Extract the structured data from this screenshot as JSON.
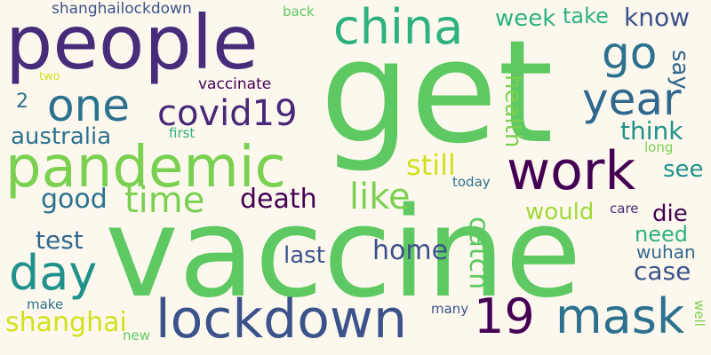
{
  "colors": {
    "background": "#fdf8ee"
  },
  "words": [
    {
      "text": "get",
      "color": "#5ec962",
      "vertical": false
    },
    {
      "text": "vaccine",
      "color": "#5ec962",
      "vertical": false
    },
    {
      "text": "people",
      "color": "#472c7a",
      "vertical": false
    },
    {
      "text": "pandemic",
      "color": "#7ad151",
      "vertical": false
    },
    {
      "text": "lockdown",
      "color": "#3b528b",
      "vertical": false
    },
    {
      "text": "work",
      "color": "#440154",
      "vertical": false
    },
    {
      "text": "china",
      "color": "#2db27d",
      "vertical": false
    },
    {
      "text": "mask",
      "color": "#2c728e",
      "vertical": false
    },
    {
      "text": "one",
      "color": "#2c728e",
      "vertical": false
    },
    {
      "text": "year",
      "color": "#31688e",
      "vertical": false
    },
    {
      "text": "day",
      "color": "#21918c",
      "vertical": false
    },
    {
      "text": "go",
      "color": "#2c728e",
      "vertical": false
    },
    {
      "text": "19",
      "color": "#440154",
      "vertical": false
    },
    {
      "text": "covid19",
      "color": "#482878",
      "vertical": false
    },
    {
      "text": "time",
      "color": "#7ad151",
      "vertical": false
    },
    {
      "text": "like",
      "color": "#7ad151",
      "vertical": false
    },
    {
      "text": "still",
      "color": "#d0e11c",
      "vertical": false
    },
    {
      "text": "death",
      "color": "#440154",
      "vertical": false
    },
    {
      "text": "good",
      "color": "#2c728e",
      "vertical": false
    },
    {
      "text": "catch",
      "color": "#5ec962",
      "vertical": true
    },
    {
      "text": "home",
      "color": "#3b528b",
      "vertical": false
    },
    {
      "text": "shanghai",
      "color": "#d0e11c",
      "vertical": false
    },
    {
      "text": "test",
      "color": "#31688e",
      "vertical": false
    },
    {
      "text": "australia",
      "color": "#2c728e",
      "vertical": false
    },
    {
      "text": "know",
      "color": "#3b528b",
      "vertical": false
    },
    {
      "text": "week",
      "color": "#2db27d",
      "vertical": false
    },
    {
      "text": "take",
      "color": "#2db27d",
      "vertical": false
    },
    {
      "text": "say",
      "color": "#31688e",
      "vertical": true
    },
    {
      "text": "health",
      "color": "#7ad151",
      "vertical": true
    },
    {
      "text": "think",
      "color": "#21918c",
      "vertical": false
    },
    {
      "text": "would",
      "color": "#a0da39",
      "vertical": false
    },
    {
      "text": "die",
      "color": "#440154",
      "vertical": false
    },
    {
      "text": "see",
      "color": "#21918c",
      "vertical": false
    },
    {
      "text": "need",
      "color": "#2db27d",
      "vertical": false
    },
    {
      "text": "case",
      "color": "#3b528b",
      "vertical": false
    },
    {
      "text": "last",
      "color": "#3b528b",
      "vertical": false
    },
    {
      "text": "wuhan",
      "color": "#31688e",
      "vertical": false
    },
    {
      "text": "shanghailockdown",
      "color": "#3b528b",
      "vertical": false
    },
    {
      "text": "vaccinate",
      "color": "#440154",
      "vertical": false
    },
    {
      "text": "back",
      "color": "#5ec962",
      "vertical": false
    },
    {
      "text": "2",
      "color": "#2c728e",
      "vertical": false
    },
    {
      "text": "two",
      "color": "#d0e11c",
      "vertical": false
    },
    {
      "text": "first",
      "color": "#2db27d",
      "vertical": false
    },
    {
      "text": "long",
      "color": "#7ad151",
      "vertical": false
    },
    {
      "text": "today",
      "color": "#2c728e",
      "vertical": false
    },
    {
      "text": "care",
      "color": "#482878",
      "vertical": false
    },
    {
      "text": "many",
      "color": "#3b528b",
      "vertical": false
    },
    {
      "text": "make",
      "color": "#2c728e",
      "vertical": false
    },
    {
      "text": "new",
      "color": "#5ec962",
      "vertical": false
    },
    {
      "text": "well",
      "color": "#7ad151",
      "vertical": true
    }
  ]
}
